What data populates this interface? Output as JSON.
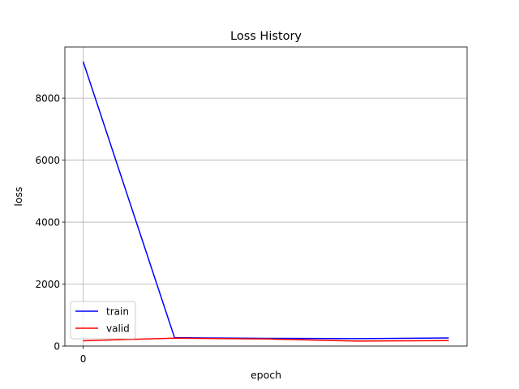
{
  "chart_data": {
    "type": "line",
    "title": "Loss History",
    "xlabel": "epoch",
    "ylabel": "loss",
    "xlim": [
      -0.2,
      4.2
    ],
    "ylim": [
      0,
      9650
    ],
    "x_ticks": [
      0
    ],
    "y_ticks": [
      0,
      2000,
      4000,
      6000,
      8000
    ],
    "grid": true,
    "legend_position": "lower-left",
    "series": [
      {
        "name": "train",
        "color": "#0000ff",
        "x": [
          0,
          1,
          2,
          3,
          4
        ],
        "y": [
          9180,
          270,
          250,
          240,
          260
        ]
      },
      {
        "name": "valid",
        "color": "#ff0000",
        "x": [
          0,
          1,
          2,
          3,
          4
        ],
        "y": [
          170,
          255,
          230,
          160,
          175
        ]
      }
    ]
  }
}
